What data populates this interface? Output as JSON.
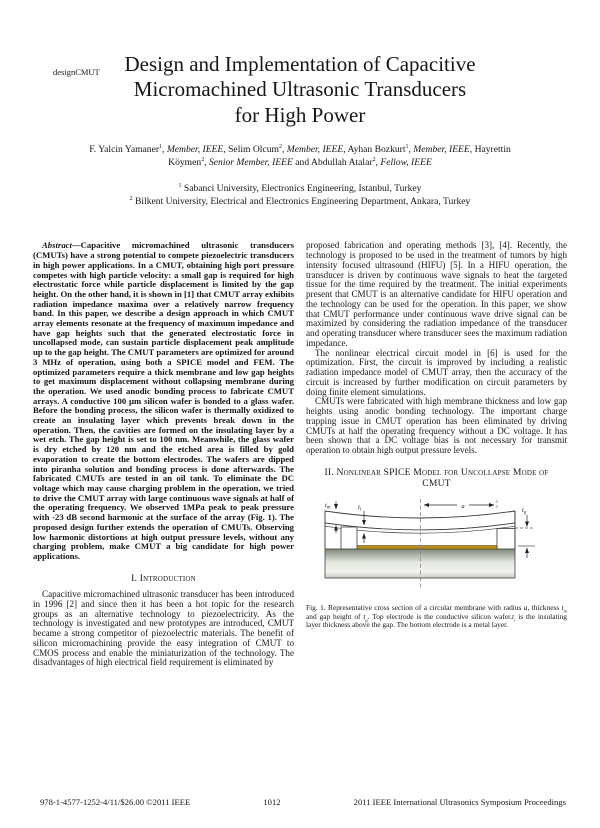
{
  "page": {
    "running_head": "designCMUT",
    "footer": {
      "copyright": "978-1-4577-1252-4/11/$26.00 ©2011 IEEE",
      "page_number": "1012",
      "proceedings": "2011 IEEE International Ultrasonics Symposium Proceedings"
    }
  },
  "title": {
    "lines": [
      "Design and Implementation of Capacitive",
      "Micromachined Ultrasonic Transducers",
      "for High Power"
    ]
  },
  "authors": {
    "segments": [
      {
        "t": "F. Yalcin Yamaner",
        "s": "n"
      },
      {
        "t": "1",
        "s": "sup"
      },
      {
        "t": ", ",
        "s": "n"
      },
      {
        "t": "Member, IEEE",
        "s": "i"
      },
      {
        "t": ", Selim Olcum",
        "s": "n"
      },
      {
        "t": "2",
        "s": "sup"
      },
      {
        "t": ", ",
        "s": "n"
      },
      {
        "t": "Member, IEEE",
        "s": "i"
      },
      {
        "t": ", Ayhan Bozkurt",
        "s": "n"
      },
      {
        "t": "1",
        "s": "sup"
      },
      {
        "t": ", ",
        "s": "n"
      },
      {
        "t": "Member, IEEE",
        "s": "i"
      },
      {
        "t": ", Hayrettin Köymen",
        "s": "n"
      },
      {
        "t": "2",
        "s": "sup"
      },
      {
        "t": ", ",
        "s": "n"
      },
      {
        "t": "Senior Member, IEEE",
        "s": "i"
      },
      {
        "t": " and Abdullah Atalar",
        "s": "n"
      },
      {
        "t": "2",
        "s": "sup"
      },
      {
        "t": ", ",
        "s": "n"
      },
      {
        "t": "Fellow, IEEE",
        "s": "i"
      }
    ]
  },
  "affiliations": [
    {
      "segments": [
        {
          "t": "1",
          "s": "sup"
        },
        {
          "t": " Sabanci University, Electronics Engineering, Istanbul, Turkey",
          "s": "n"
        }
      ]
    },
    {
      "segments": [
        {
          "t": "2",
          "s": "sup"
        },
        {
          "t": " Bilkent University, Electrical and Electronics Engineering Department, Ankara, Turkey",
          "s": "n"
        }
      ]
    }
  ],
  "abstract": {
    "segments": [
      {
        "t": "Abstract",
        "s": "i"
      },
      {
        "t": "—Capacitive micromachined ultrasonic transducers (CMUTs) have a strong potential to compete piezoelectric transducers in high power applications. In a CMUT, obtaining high port pressure competes with high particle velocity: a small gap is required for high electrostatic force while particle displacement is limited by the gap height. On the other hand, it is shown in [1] that CMUT array exhibits radiation impedance maxima over a relatively narrow frequency band. In this paper, we describe a design approach in which CMUT array elements resonate at the frequency of maximum impedance and have gap heights such that the generated electrostatic force in uncollapsed mode, can sustain particle displacement peak amplitude up to the gap height. The CMUT parameters are optimized for around 3 MHz of operation, using both a SPICE model and FEM. The optimized parameters require a thick membrane and low gap heights to get maximum displacement without collapsing membrane during the operation. We used anodic bonding process to fabricate CMUT arrays. A conductive 100 µm silicon wafer is bonded to a glass wafer. Before the bonding process, the silicon wafer is thermally oxidized to create an insulating layer which prevents break down in the operation. Then, the cavities are formed on the insulating layer by a wet etch. The gap height is set to 100 nm. Meanwhile, the glass wafer is dry etched by 120 nm and the etched area is filled by gold evaporation to create the bottom electrodes. The wafers are dipped into piranha solution and bonding process is done afterwards. The fabricated CMUTs are tested in an oil tank. To eliminate the DC voltage which may cause charging problem in the operation, we tried to drive the CMUT array with large continuous wave signals at half of the operating frequency. We observed 1MPa peak to peak pressure with -23 dB second harmonic at the surface of the array (Fig. 1). The proposed design further extends the operation of CMUTs. Observing low harmonic distortions at high output pressure levels, without any charging problem, make CMUT a big candidate for high power applications.",
        "s": "n"
      }
    ]
  },
  "sections": {
    "intro_heading": "I. Introduction",
    "intro_para": "Capacitive micromachined ultrasonic transducer has been introduced in 1996 [2] and since then it has been a hot topic for the research groups as an alternative technology to piezoelectricity. As the technology is investigated and new prototypes are introduced, CMUT became a strong competitor of piezoelectric materials. The benefit of silicon micromachining provide the easy integration of CMUT to CMOS process and enable the miniaturization of the technology. The disadvantages of high electrical field requirement is eliminated by",
    "spice_heading": "II. Nonlinear SPICE Model for Uncollapse Mode of CMUT"
  },
  "right_column": {
    "p1": "proposed fabrication and operating methods [3], [4]. Recently, the technology is proposed to be used in the treatment of tumors by high intensity focused ultrasound (HIFU) [5]. In a HIFU operation, the transducer is driven by continuous wave signals to heat the targeted tissue for the time required by the treatment. The initial experiments present that CMUT is an alternative candidate for HIFU operation and the technology can be used for the operation. In this paper, we show that CMUT performance under continuous wave drive signal can be maximized by considering the radiation impedance of the transducer and operating transducer where transducer sees the maximum radiation impedance.",
    "p2": "The nonlinear electrical circuit model in [6] is used for the optimization. First, the circuit is improved by including a realistic radiation impedance model of CMUT array, then the accuracy of the circuit is increased by further modification on circuit parameters by doing finite element simulations.",
    "p3": "CMUTs were fabricated with high membrane thickness and low gap heights using anodic bonding technology. The important charge trapping issue in CMUT operation has been eliminated by driving CMUTs at half the operating frequency without a DC voltage. It has been shown that a DC voltage bias is not necessary for transmit operation to obtain high output pressure levels."
  },
  "figure": {
    "labels": {
      "membrane_thickness": {
        "base": "t",
        "sub": "m"
      },
      "insulator_thickness": {
        "base": "t",
        "sub": "i"
      },
      "radius": {
        "base": "a",
        "sub": ""
      },
      "gap_height": {
        "base": "t",
        "sub": "g"
      }
    },
    "colors": {
      "glass_top": "#7f897b",
      "glass_mid": "#e2e5de",
      "glass_low": "#f3f4f0",
      "glass_bottom": "#c7cbc0",
      "gold": "#b5901f"
    },
    "caption_segments": [
      {
        "t": "Fig. 1.   Representative cross section of a circular membrane with radius ",
        "s": "n"
      },
      {
        "t": "a",
        "s": "i"
      },
      {
        "t": ", thickness ",
        "s": "n"
      },
      {
        "t": "t",
        "s": "i"
      },
      {
        "t": "m",
        "s": "isub"
      },
      {
        "t": " and gap height of ",
        "s": "n"
      },
      {
        "t": "t",
        "s": "i"
      },
      {
        "t": "g",
        "s": "isub"
      },
      {
        "t": ". Top electrode is the conductive silicon wafer.",
        "s": "n"
      },
      {
        "t": "t",
        "s": "i"
      },
      {
        "t": "i",
        "s": "isub"
      },
      {
        "t": " is the insulating layer thickness above the gap. The bottom electrode is a metal layer.",
        "s": "n"
      }
    ]
  }
}
